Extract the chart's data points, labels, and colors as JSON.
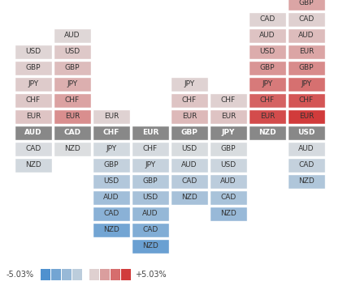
{
  "columns": [
    "AUD",
    "CAD",
    "CHF",
    "EUR",
    "GBP",
    "JPY",
    "NZD",
    "USD"
  ],
  "header_color": "#888888",
  "figsize": [
    4.22,
    3.58
  ],
  "dpi": 100,
  "legend_min": "-5.03%",
  "legend_max": "+5.03%",
  "cells": {
    "AUD": {
      "above": [
        {
          "label": "EUR",
          "value": 0.85
        },
        {
          "label": "CHF",
          "value": 0.75
        },
        {
          "label": "JPY",
          "value": 0.65
        },
        {
          "label": "GBP",
          "value": 0.55
        },
        {
          "label": "USD",
          "value": 0.35
        }
      ],
      "below": [
        {
          "label": "CAD",
          "value": -0.25
        },
        {
          "label": "NZD",
          "value": -0.55
        }
      ]
    },
    "CAD": {
      "above": [
        {
          "label": "EUR",
          "value": 2.5
        },
        {
          "label": "CHF",
          "value": 1.9
        },
        {
          "label": "JPY",
          "value": 1.5
        },
        {
          "label": "GBP",
          "value": 1.1
        },
        {
          "label": "USD",
          "value": 0.75
        },
        {
          "label": "AUD",
          "value": 0.3
        }
      ],
      "below": [
        {
          "label": "NZD",
          "value": -0.15
        }
      ]
    },
    "CHF": {
      "above": [
        {
          "label": "EUR",
          "value": 0.45
        }
      ],
      "below": [
        {
          "label": "JPY",
          "value": -0.5
        },
        {
          "label": "GBP",
          "value": -1.0
        },
        {
          "label": "USD",
          "value": -1.6
        },
        {
          "label": "AUD",
          "value": -2.2
        },
        {
          "label": "CAD",
          "value": -3.0
        },
        {
          "label": "NZD",
          "value": -3.8
        }
      ]
    },
    "EUR": {
      "above": [],
      "below": [
        {
          "label": "CHF",
          "value": -0.4
        },
        {
          "label": "JPY",
          "value": -0.9
        },
        {
          "label": "GBP",
          "value": -1.5
        },
        {
          "label": "USD",
          "value": -2.0
        },
        {
          "label": "AUD",
          "value": -2.6
        },
        {
          "label": "CAD",
          "value": -3.3
        },
        {
          "label": "NZD",
          "value": -4.1
        }
      ]
    },
    "GBP": {
      "above": [
        {
          "label": "EUR",
          "value": 1.2
        },
        {
          "label": "CHF",
          "value": 0.85
        },
        {
          "label": "JPY",
          "value": 0.45
        }
      ],
      "below": [
        {
          "label": "USD",
          "value": -0.3
        },
        {
          "label": "AUD",
          "value": -0.8
        },
        {
          "label": "CAD",
          "value": -1.4
        },
        {
          "label": "NZD",
          "value": -2.0
        }
      ]
    },
    "JPY": {
      "above": [
        {
          "label": "EUR",
          "value": 0.9
        },
        {
          "label": "CHF",
          "value": 0.5
        }
      ],
      "below": [
        {
          "label": "GBP",
          "value": -0.3
        },
        {
          "label": "USD",
          "value": -0.75
        },
        {
          "label": "AUD",
          "value": -1.3
        },
        {
          "label": "CAD",
          "value": -1.9
        },
        {
          "label": "NZD",
          "value": -2.5
        }
      ]
    },
    "NZD": {
      "above": [
        {
          "label": "EUR",
          "value": 4.5
        },
        {
          "label": "CHF",
          "value": 3.8
        },
        {
          "label": "JPY",
          "value": 3.1
        },
        {
          "label": "GBP",
          "value": 2.3
        },
        {
          "label": "USD",
          "value": 1.6
        },
        {
          "label": "AUD",
          "value": 0.9
        },
        {
          "label": "CAD",
          "value": 0.4
        }
      ],
      "below": []
    },
    "USD": {
      "above": [
        {
          "label": "EUR",
          "value": 5.03
        },
        {
          "label": "CHF",
          "value": 4.2
        },
        {
          "label": "JPY",
          "value": 3.4
        },
        {
          "label": "GBP",
          "value": 2.6
        },
        {
          "label": "EUR",
          "value": 1.8
        },
        {
          "label": "AUD",
          "value": 1.1
        },
        {
          "label": "CAD",
          "value": 0.5
        },
        {
          "label": "GBP",
          "value": 1.8
        }
      ],
      "below": [
        {
          "label": "AUD",
          "value": -0.4
        },
        {
          "label": "CAD",
          "value": -1.0
        },
        {
          "label": "NZD",
          "value": -1.7
        }
      ]
    }
  }
}
